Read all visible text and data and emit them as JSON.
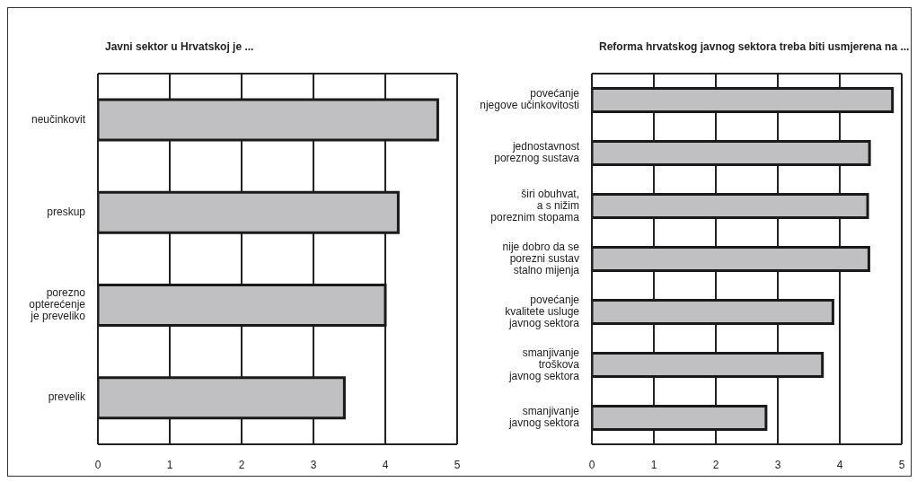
{
  "chart_data": [
    {
      "type": "bar",
      "orientation": "horizontal",
      "title": "Javni sektor u Hrvatskoj je ...",
      "categories": [
        "neučinkovit",
        "preskup",
        "porezno\nopterećenje\nje preveliko",
        "prevelik"
      ],
      "values": [
        4.73,
        4.18,
        4.0,
        3.43
      ],
      "color": "#c0c0c2",
      "xlim": [
        0,
        5
      ],
      "xticks": [
        0,
        1,
        2,
        3,
        4,
        5
      ],
      "grid": "x"
    },
    {
      "type": "bar",
      "orientation": "horizontal",
      "title": "Reforma hrvatskog javnog sektora treba biti usmjerena na ...",
      "categories": [
        "povećanje\nnjegove učinkovitosti",
        "jednostavnost\nporeznog sustava",
        "širi obuhvat,\na s nižim\nporeznim stopama",
        "nije dobro da se\nporezni sustav\nstalno mijenja",
        "povećanje\nkvalitete usluge\njavnog sektora",
        "smanjivanje\ntroškova\njavnog sektora",
        "smanjivanje\njavnog sektora"
      ],
      "values": [
        4.85,
        4.48,
        4.45,
        4.47,
        3.89,
        3.72,
        2.81
      ],
      "color": "#c0c0c2",
      "xlim": [
        0,
        5
      ],
      "xticks": [
        0,
        1,
        2,
        3,
        4,
        5
      ],
      "grid": "x"
    }
  ]
}
